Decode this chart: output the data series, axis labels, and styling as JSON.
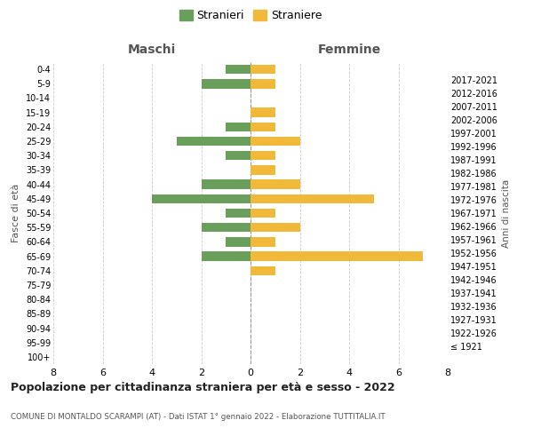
{
  "age_groups": [
    "100+",
    "95-99",
    "90-94",
    "85-89",
    "80-84",
    "75-79",
    "70-74",
    "65-69",
    "60-64",
    "55-59",
    "50-54",
    "45-49",
    "40-44",
    "35-39",
    "30-34",
    "25-29",
    "20-24",
    "15-19",
    "10-14",
    "5-9",
    "0-4"
  ],
  "birth_years": [
    "≤ 1921",
    "1922-1926",
    "1927-1931",
    "1932-1936",
    "1937-1941",
    "1942-1946",
    "1947-1951",
    "1952-1956",
    "1957-1961",
    "1962-1966",
    "1967-1971",
    "1972-1976",
    "1977-1981",
    "1982-1986",
    "1987-1991",
    "1992-1996",
    "1997-2001",
    "2002-2006",
    "2007-2011",
    "2012-2016",
    "2017-2021"
  ],
  "maschi": [
    0,
    0,
    0,
    0,
    0,
    0,
    0,
    2,
    1,
    2,
    1,
    4,
    2,
    0,
    1,
    3,
    1,
    0,
    0,
    2,
    1
  ],
  "femmine": [
    0,
    0,
    0,
    0,
    0,
    0,
    1,
    7,
    1,
    2,
    1,
    5,
    2,
    1,
    1,
    2,
    1,
    1,
    0,
    1,
    1
  ],
  "color_maschi": "#6a9e5b",
  "color_femmine": "#f0b93a",
  "title": "Popolazione per cittadinanza straniera per età e sesso - 2022",
  "subtitle": "COMUNE DI MONTALDO SCARAMPI (AT) - Dati ISTAT 1° gennaio 2022 - Elaborazione TUTTITALIA.IT",
  "legend_maschi": "Stranieri",
  "legend_femmine": "Straniere",
  "xlabel_left": "Maschi",
  "xlabel_right": "Femmine",
  "ylabel": "Fasce di età",
  "ylabel_right": "Anni di nascita",
  "xlim": 8,
  "background_color": "#ffffff",
  "grid_color": "#cccccc"
}
